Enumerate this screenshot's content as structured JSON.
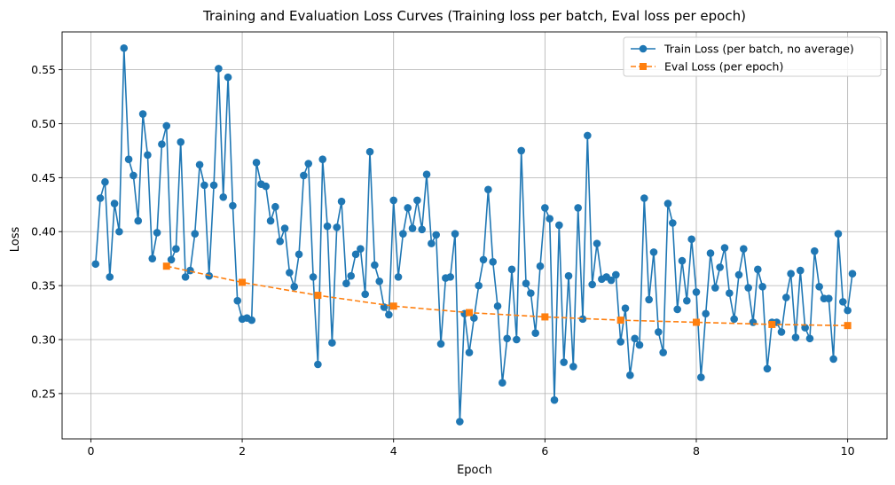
{
  "chart_data": {
    "type": "line",
    "title": "Training and Evaluation Loss Curves (Training loss per batch, Eval loss per epoch)",
    "xlabel": "Epoch",
    "ylabel": "Loss",
    "xlim": [
      -0.38,
      10.52
    ],
    "ylim": [
      0.208,
      0.585
    ],
    "xticks": [
      0,
      2,
      4,
      6,
      8,
      10
    ],
    "xtick_labels": [
      "0",
      "2",
      "4",
      "6",
      "8",
      "10"
    ],
    "yticks": [
      0.25,
      0.3,
      0.35,
      0.4,
      0.45,
      0.5,
      0.55
    ],
    "ytick_labels": [
      "0.25",
      "0.30",
      "0.35",
      "0.40",
      "0.45",
      "0.50",
      "0.55"
    ],
    "grid": true,
    "legend_position": "top-right",
    "series": [
      {
        "name": "Train Loss (per batch, no average)",
        "color": "#1f77b4",
        "line_style": "solid",
        "marker": "circle",
        "x_start": 0.0625,
        "x_step": 0.0625,
        "values": [
          0.37,
          0.431,
          0.446,
          0.358,
          0.426,
          0.4,
          0.57,
          0.467,
          0.452,
          0.41,
          0.509,
          0.471,
          0.375,
          0.399,
          0.481,
          0.498,
          0.374,
          0.384,
          0.483,
          0.358,
          0.364,
          0.398,
          0.462,
          0.443,
          0.359,
          0.443,
          0.551,
          0.432,
          0.543,
          0.424,
          0.336,
          0.319,
          0.32,
          0.318,
          0.464,
          0.444,
          0.442,
          0.41,
          0.423,
          0.391,
          0.403,
          0.362,
          0.349,
          0.379,
          0.452,
          0.463,
          0.358,
          0.277,
          0.467,
          0.405,
          0.297,
          0.404,
          0.428,
          0.352,
          0.359,
          0.379,
          0.384,
          0.342,
          0.474,
          0.369,
          0.354,
          0.33,
          0.323,
          0.429,
          0.358,
          0.398,
          0.422,
          0.403,
          0.429,
          0.402,
          0.453,
          0.389,
          0.397,
          0.296,
          0.357,
          0.358,
          0.398,
          0.224,
          0.324,
          0.288,
          0.32,
          0.35,
          0.374,
          0.439,
          0.372,
          0.331,
          0.26,
          0.301,
          0.365,
          0.3,
          0.475,
          0.352,
          0.343,
          0.306,
          0.368,
          0.422,
          0.412,
          0.244,
          0.406,
          0.279,
          0.359,
          0.275,
          0.422,
          0.319,
          0.489,
          0.351,
          0.389,
          0.356,
          0.358,
          0.355,
          0.36,
          0.298,
          0.329,
          0.267,
          0.301,
          0.295,
          0.431,
          0.337,
          0.381,
          0.307,
          0.288,
          0.426,
          0.408,
          0.328,
          0.373,
          0.336,
          0.393,
          0.344,
          0.265,
          0.324,
          0.38,
          0.348,
          0.367,
          0.385,
          0.343,
          0.319,
          0.36,
          0.384,
          0.348,
          0.316,
          0.365,
          0.349,
          0.273,
          0.316,
          0.316,
          0.307,
          0.339,
          0.361,
          0.302,
          0.364,
          0.311,
          0.301,
          0.382,
          0.349,
          0.338,
          0.338,
          0.282,
          0.398,
          0.335,
          0.327,
          0.361
        ]
      },
      {
        "name": "Eval Loss (per epoch)",
        "color": "#ff7f0e",
        "line_style": "dashed",
        "marker": "square",
        "x": [
          1,
          2,
          3,
          4,
          5,
          6,
          7,
          8,
          9,
          10
        ],
        "values": [
          0.368,
          0.353,
          0.341,
          0.331,
          0.325,
          0.321,
          0.318,
          0.316,
          0.314,
          0.313
        ]
      }
    ]
  }
}
